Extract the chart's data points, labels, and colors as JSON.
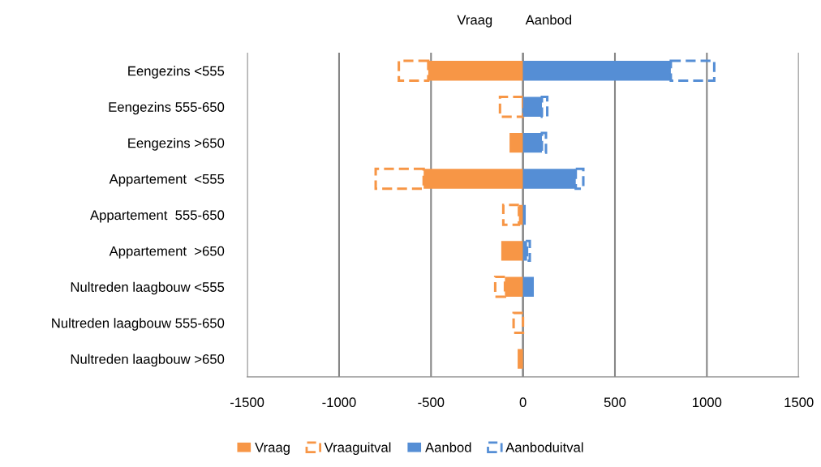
{
  "chart_data": {
    "type": "bar",
    "orientation": "horizontal",
    "stacked": true,
    "categories": [
      "Eengezins <555",
      "Eengezins 555-650",
      "Eengezins >650",
      "Appartement  <555",
      "Appartement  555-650",
      "Appartement  >650",
      "Nultreden laagbouw <555",
      "Nultreden laagbouw 555-650",
      "Nultreden laagbouw >650"
    ],
    "series": [
      {
        "name": "Vraag",
        "color": "#f79646",
        "values": [
          -515,
          0,
          -73,
          -540,
          -22,
          -118,
          -98,
          0,
          -29
        ]
      },
      {
        "name": "Vraaguitval",
        "color": "#f79646",
        "line_style": "dashed",
        "values": [
          -160,
          -125,
          0,
          -261,
          -85,
          0,
          -53,
          -51,
          0
        ]
      },
      {
        "name": "Aanbod",
        "color": "#558ed5",
        "values": [
          804,
          103,
          103,
          287,
          15,
          22,
          59,
          0,
          0
        ]
      },
      {
        "name": "Aanboduitval",
        "color": "#558ed5",
        "line_style": "dashed",
        "values": [
          236,
          29,
          22,
          41,
          0,
          15,
          0,
          0,
          0
        ]
      }
    ],
    "xlim": [
      -1500,
      1500
    ],
    "xticks": [
      -1500,
      -1000,
      -500,
      0,
      500,
      1000,
      1500
    ],
    "grid": "x",
    "legend": "bottom",
    "annotations": [
      "Vraag",
      "Aanbod"
    ]
  }
}
